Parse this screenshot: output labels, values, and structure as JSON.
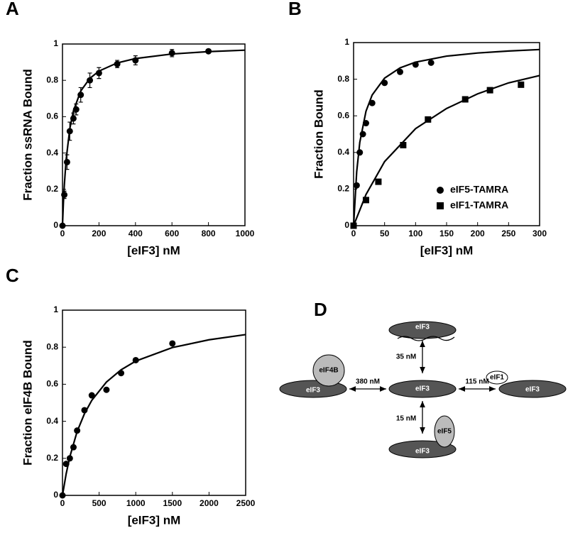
{
  "chart_data": [
    {
      "type": "scatter",
      "panel": "A",
      "xlabel": "[eIF3] nM",
      "ylabel": "Fraction ssRNA Bound",
      "xlim": [
        0,
        1000
      ],
      "xticks": [
        0,
        200,
        400,
        600,
        800,
        1000
      ],
      "ylim": [
        0,
        1
      ],
      "yticks": [
        0,
        0.2,
        0.4,
        0.6,
        0.8,
        1
      ],
      "series": [
        {
          "marker": "circle",
          "color": "#000000",
          "x": [
            0,
            10,
            25,
            40,
            60,
            75,
            100,
            150,
            200,
            300,
            400,
            600,
            800
          ],
          "values": [
            0,
            0.17,
            0.35,
            0.52,
            0.59,
            0.64,
            0.72,
            0.8,
            0.84,
            0.89,
            0.91,
            0.95,
            0.96
          ],
          "errors": [
            0,
            0.02,
            0.04,
            0.05,
            0.03,
            0.03,
            0.04,
            0.04,
            0.03,
            0.02,
            0.025,
            0.02,
            0.01
          ],
          "fit": {
            "x": [
              0,
              5,
              10,
              20,
              40,
              60,
              100,
              150,
              200,
              300,
              400,
              600,
              800,
              1000
            ],
            "values": [
              0,
              0.125,
              0.222,
              0.364,
              0.533,
              0.632,
              0.741,
              0.811,
              0.851,
              0.896,
              0.92,
              0.945,
              0.958,
              0.966
            ]
          }
        }
      ]
    },
    {
      "type": "scatter",
      "panel": "B",
      "xlabel": "[eIF3] nM",
      "ylabel": "Fraction Bound",
      "xlim": [
        0,
        300
      ],
      "xticks": [
        0,
        50,
        100,
        150,
        200,
        250,
        300
      ],
      "ylim": [
        0,
        1
      ],
      "yticks": [
        0,
        0.2,
        0.4,
        0.6,
        0.8,
        1
      ],
      "legend": "lower right",
      "series": [
        {
          "name": "eIF5-TAMRA",
          "marker": "circle",
          "color": "#000000",
          "x": [
            0,
            5,
            10,
            15,
            20,
            30,
            50,
            75,
            100,
            125
          ],
          "values": [
            0,
            0.22,
            0.4,
            0.5,
            0.56,
            0.67,
            0.78,
            0.84,
            0.88,
            0.89
          ],
          "fit": {
            "x": [
              0,
              5,
              10,
              20,
              30,
              50,
              75,
              100,
              150,
              200,
              250,
              300
            ],
            "values": [
              0,
              0.294,
              0.455,
              0.625,
              0.714,
              0.806,
              0.862,
              0.893,
              0.926,
              0.943,
              0.954,
              0.962
            ]
          }
        },
        {
          "name": "eIF1-TAMRA",
          "marker": "square",
          "color": "#000000",
          "x": [
            0,
            20,
            40,
            80,
            120,
            180,
            220,
            270
          ],
          "values": [
            0,
            0.14,
            0.24,
            0.44,
            0.58,
            0.69,
            0.74,
            0.77
          ],
          "fit": {
            "x": [
              0,
              20,
              50,
              100,
              150,
              200,
              250,
              300
            ],
            "values": [
              0,
              0.17,
              0.35,
              0.53,
              0.64,
              0.72,
              0.78,
              0.82
            ]
          }
        }
      ]
    },
    {
      "type": "scatter",
      "panel": "C",
      "xlabel": "[eIF3] nM",
      "ylabel": "Fraction eIF4B Bound",
      "xlim": [
        0,
        2500
      ],
      "xticks": [
        0,
        500,
        1000,
        1500,
        2000,
        2500
      ],
      "ylim": [
        0,
        1
      ],
      "yticks": [
        0,
        0.2,
        0.4,
        0.6,
        0.8,
        1
      ],
      "series": [
        {
          "marker": "circle",
          "color": "#000000",
          "x": [
            0,
            50,
            100,
            150,
            200,
            300,
            400,
            600,
            800,
            1000,
            1500
          ],
          "values": [
            0,
            0.17,
            0.2,
            0.26,
            0.35,
            0.46,
            0.54,
            0.57,
            0.66,
            0.73,
            0.82
          ],
          "fit": {
            "x": [
              0,
              50,
              100,
              200,
              300,
              400,
              600,
              800,
              1000,
              1500,
              2000,
              2500
            ],
            "values": [
              0,
              0.116,
              0.208,
              0.345,
              0.441,
              0.513,
              0.612,
              0.678,
              0.725,
              0.798,
              0.84,
              0.868
            ]
          }
        }
      ]
    }
  ],
  "diagram": {
    "panel": "D",
    "nodes": {
      "center": "eIF3",
      "top": "eIF3",
      "left": "eIF3",
      "left_partner": "eIF4B",
      "right": "eIF3",
      "right_partner": "eIF1",
      "bottom": "eIF3",
      "bottom_partner": "eIF5"
    },
    "edges": {
      "left": "380 nM",
      "top": "35 nM",
      "right": "115 nM",
      "bottom": "15 nM"
    }
  }
}
